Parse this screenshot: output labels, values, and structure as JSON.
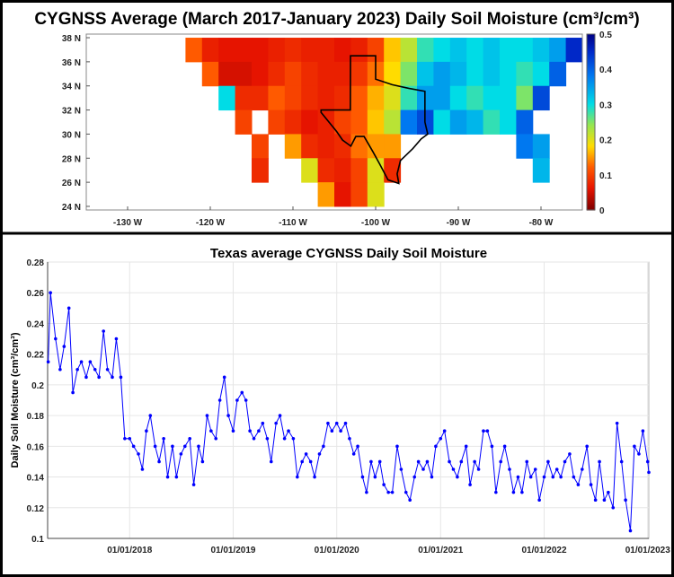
{
  "chart_data": [
    {
      "type": "heatmap",
      "title": "CYGNSS Average (March 2017-January 2023) Daily Soil Moisture (cm³/cm³)",
      "xlim": [
        -135,
        -75
      ],
      "ylim": [
        23.7,
        38.3
      ],
      "x_ticks": [
        -130,
        -120,
        -110,
        -100,
        -90,
        -80
      ],
      "x_tick_labels": [
        "-130 W",
        "-120 W",
        "-110 W",
        "-100 W",
        "-90 W",
        "-80 W"
      ],
      "y_ticks": [
        24,
        26,
        28,
        30,
        32,
        34,
        36,
        38
      ],
      "y_tick_labels": [
        "24 N",
        "26 N",
        "28 N",
        "30 N",
        "32 N",
        "34 N",
        "36 N",
        "38 N"
      ],
      "colorbar": {
        "range": [
          0,
          0.5
        ],
        "ticks": [
          0,
          0.1,
          0.2,
          0.3,
          0.4,
          0.5
        ],
        "tick_labels": [
          "0",
          "0.1",
          "0.2",
          "0.3",
          "0.4",
          "0.5"
        ],
        "colormap": "jet-reversed"
      },
      "overlay": "Texas state outline",
      "grid_lon_centers": [
        -122,
        -120,
        -118,
        -116,
        -114,
        -112,
        -110,
        -108,
        -106,
        -104,
        -102,
        -100,
        -98,
        -96,
        -94,
        -92,
        -90,
        -88,
        -86,
        -84,
        -82,
        -80,
        -78,
        -76
      ],
      "grid_lat_centers": [
        37,
        35,
        33,
        31,
        29,
        27,
        25
      ],
      "values": [
        [
          0.12,
          0.07,
          0.06,
          0.06,
          0.06,
          0.07,
          0.08,
          0.07,
          0.07,
          0.06,
          0.07,
          0.1,
          0.17,
          0.22,
          0.28,
          0.3,
          0.32,
          0.3,
          0.32,
          0.3,
          0.3,
          0.32,
          0.35,
          0.45
        ],
        [
          null,
          0.12,
          0.05,
          0.05,
          0.06,
          0.08,
          0.1,
          0.08,
          0.07,
          0.07,
          0.09,
          0.13,
          0.18,
          0.25,
          0.32,
          0.35,
          0.33,
          0.3,
          0.32,
          0.3,
          0.28,
          0.3,
          0.4,
          null
        ],
        [
          null,
          null,
          0.3,
          0.08,
          0.08,
          0.12,
          0.1,
          0.08,
          0.07,
          0.08,
          0.12,
          0.16,
          0.2,
          0.28,
          0.35,
          0.35,
          0.3,
          0.28,
          0.3,
          0.3,
          0.25,
          0.42,
          null,
          null
        ],
        [
          null,
          null,
          null,
          0.1,
          null,
          0.1,
          0.08,
          0.06,
          0.07,
          0.1,
          0.12,
          0.17,
          0.22,
          0.38,
          0.42,
          0.3,
          0.35,
          0.33,
          0.28,
          0.3,
          0.4,
          null,
          null,
          null
        ],
        [
          null,
          null,
          null,
          null,
          0.1,
          null,
          0.15,
          0.08,
          0.07,
          0.08,
          0.13,
          0.15,
          0.15,
          null,
          null,
          null,
          null,
          null,
          null,
          null,
          0.38,
          0.35,
          null,
          null
        ],
        [
          null,
          null,
          null,
          null,
          0.08,
          null,
          null,
          0.2,
          0.08,
          0.07,
          0.1,
          0.2,
          0.08,
          null,
          null,
          null,
          null,
          null,
          null,
          null,
          null,
          0.33,
          null,
          null
        ],
        [
          null,
          null,
          null,
          null,
          null,
          null,
          null,
          null,
          0.15,
          0.06,
          0.1,
          0.2,
          null,
          null,
          null,
          null,
          null,
          null,
          null,
          null,
          null,
          null,
          null,
          null
        ]
      ]
    },
    {
      "type": "line",
      "title": "Texas average CYGNSS Daily Soil Moisture",
      "xlabel": "",
      "ylabel": "Daily Soil Moisture (cm³/cm³)",
      "xlim": [
        "2017-03-18",
        "2023-01-05"
      ],
      "ylim": [
        0.1,
        0.28
      ],
      "grid": true,
      "y_ticks": [
        0.1,
        0.12,
        0.14,
        0.16,
        0.18,
        0.2,
        0.22,
        0.24,
        0.26,
        0.28
      ],
      "y_tick_labels": [
        "0.1",
        "0.12",
        "0.14",
        "0.16",
        "0.18",
        "0.2",
        "0.22",
        "0.24",
        "0.26",
        "0.28"
      ],
      "x_ticks": [
        "2018-01-01",
        "2019-01-01",
        "2020-01-01",
        "2021-01-01",
        "2022-01-01",
        "2023-01-01"
      ],
      "x_tick_labels": [
        "01/01/2018",
        "01/01/2019",
        "01/01/2020",
        "01/01/2021",
        "01/01/2022",
        "01/01/2023"
      ],
      "series_color": "#0000ff",
      "x": [
        "2017-03-20",
        "2017-03-28",
        "2017-04-15",
        "2017-05-01",
        "2017-05-15",
        "2017-06-01",
        "2017-06-15",
        "2017-07-01",
        "2017-07-15",
        "2017-08-01",
        "2017-08-15",
        "2017-09-01",
        "2017-09-15",
        "2017-10-01",
        "2017-10-15",
        "2017-11-01",
        "2017-11-15",
        "2017-12-01",
        "2017-12-15",
        "2018-01-01",
        "2018-01-15",
        "2018-02-01",
        "2018-02-15",
        "2018-03-01",
        "2018-03-15",
        "2018-04-01",
        "2018-04-15",
        "2018-05-01",
        "2018-05-15",
        "2018-06-01",
        "2018-06-15",
        "2018-07-01",
        "2018-07-15",
        "2018-08-01",
        "2018-08-15",
        "2018-09-01",
        "2018-09-15",
        "2018-10-01",
        "2018-10-15",
        "2018-11-01",
        "2018-11-15",
        "2018-12-01",
        "2018-12-15",
        "2019-01-01",
        "2019-01-15",
        "2019-02-01",
        "2019-02-15",
        "2019-03-01",
        "2019-03-15",
        "2019-04-01",
        "2019-04-15",
        "2019-05-01",
        "2019-05-15",
        "2019-06-01",
        "2019-06-15",
        "2019-07-01",
        "2019-07-15",
        "2019-08-01",
        "2019-08-15",
        "2019-09-01",
        "2019-09-15",
        "2019-10-01",
        "2019-10-15",
        "2019-11-01",
        "2019-11-15",
        "2019-12-01",
        "2019-12-15",
        "2020-01-01",
        "2020-01-15",
        "2020-02-01",
        "2020-02-15",
        "2020-03-01",
        "2020-03-15",
        "2020-04-01",
        "2020-04-15",
        "2020-05-01",
        "2020-05-15",
        "2020-06-01",
        "2020-06-15",
        "2020-07-01",
        "2020-07-15",
        "2020-08-01",
        "2020-08-15",
        "2020-09-01",
        "2020-09-15",
        "2020-10-01",
        "2020-10-15",
        "2020-11-01",
        "2020-11-15",
        "2020-12-01",
        "2020-12-15",
        "2021-01-01",
        "2021-01-15",
        "2021-02-01",
        "2021-02-15",
        "2021-03-01",
        "2021-03-15",
        "2021-04-01",
        "2021-04-15",
        "2021-05-01",
        "2021-05-15",
        "2021-06-01",
        "2021-06-15",
        "2021-07-01",
        "2021-07-15",
        "2021-08-01",
        "2021-08-15",
        "2021-09-01",
        "2021-09-15",
        "2021-10-01",
        "2021-10-15",
        "2021-11-01",
        "2021-11-15",
        "2021-12-01",
        "2021-12-15",
        "2022-01-01",
        "2022-01-15",
        "2022-02-01",
        "2022-02-15",
        "2022-03-01",
        "2022-03-15",
        "2022-04-01",
        "2022-04-15",
        "2022-05-01",
        "2022-05-15",
        "2022-06-01",
        "2022-06-15",
        "2022-07-01",
        "2022-07-15",
        "2022-08-01",
        "2022-08-15",
        "2022-09-01",
        "2022-09-15",
        "2022-10-01",
        "2022-10-15",
        "2022-11-01",
        "2022-11-15",
        "2022-12-01",
        "2022-12-15",
        "2023-01-01",
        "2023-01-05"
      ],
      "y": [
        0.215,
        0.26,
        0.23,
        0.21,
        0.225,
        0.25,
        0.195,
        0.21,
        0.215,
        0.205,
        0.215,
        0.21,
        0.205,
        0.235,
        0.21,
        0.205,
        0.23,
        0.205,
        0.165,
        0.165,
        0.16,
        0.155,
        0.145,
        0.17,
        0.18,
        0.16,
        0.15,
        0.165,
        0.14,
        0.16,
        0.14,
        0.155,
        0.16,
        0.165,
        0.135,
        0.16,
        0.15,
        0.18,
        0.17,
        0.165,
        0.19,
        0.205,
        0.18,
        0.17,
        0.19,
        0.195,
        0.19,
        0.17,
        0.165,
        0.17,
        0.175,
        0.165,
        0.15,
        0.175,
        0.18,
        0.165,
        0.17,
        0.165,
        0.14,
        0.15,
        0.155,
        0.15,
        0.14,
        0.155,
        0.16,
        0.175,
        0.17,
        0.175,
        0.17,
        0.175,
        0.165,
        0.155,
        0.16,
        0.14,
        0.13,
        0.15,
        0.14,
        0.15,
        0.135,
        0.13,
        0.13,
        0.16,
        0.145,
        0.13,
        0.125,
        0.14,
        0.15,
        0.145,
        0.15,
        0.14,
        0.16,
        0.165,
        0.17,
        0.15,
        0.145,
        0.14,
        0.15,
        0.16,
        0.135,
        0.15,
        0.145,
        0.17,
        0.17,
        0.16,
        0.13,
        0.15,
        0.16,
        0.145,
        0.13,
        0.14,
        0.13,
        0.15,
        0.14,
        0.145,
        0.125,
        0.14,
        0.15,
        0.14,
        0.145,
        0.14,
        0.15,
        0.155,
        0.14,
        0.135,
        0.145,
        0.16,
        0.135,
        0.125,
        0.15,
        0.125,
        0.13,
        0.12,
        0.175,
        0.15,
        0.125,
        0.105,
        0.16,
        0.155,
        0.17,
        0.15,
        0.143
      ]
    }
  ]
}
